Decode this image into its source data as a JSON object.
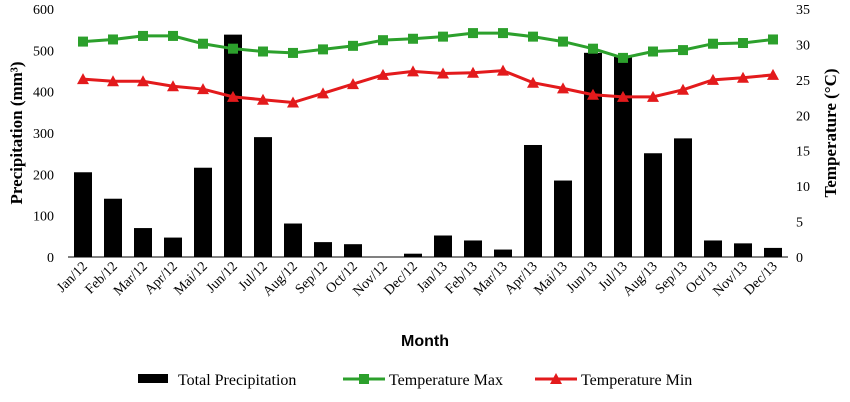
{
  "chart_data": {
    "type": "bar",
    "categories": [
      "Jan/12",
      "Feb/12",
      "Mar/12",
      "Apr/12",
      "Mai/12",
      "Jun/12",
      "Jul/12",
      "Aug/12",
      "Sep/12",
      "Oct/12",
      "Nov/12",
      "Dec/12",
      "Jan/13",
      "Feb/13",
      "Mar/13",
      "Apr/13",
      "Mai/13",
      "Jun/13",
      "Jul/13",
      "Aug/13",
      "Sep/13",
      "Oct/13",
      "Nov/13",
      "Dec/13"
    ],
    "series": [
      {
        "name": "Total Precipitation",
        "kind": "bar",
        "axis": "left",
        "color": "#000000",
        "values": [
          205,
          141,
          70,
          47,
          216,
          538,
          290,
          81,
          36,
          31,
          0,
          8,
          52,
          40,
          18,
          271,
          185,
          494,
          484,
          251,
          287,
          40,
          33,
          22
        ]
      },
      {
        "name": "Temperature Max",
        "kind": "line",
        "axis": "right",
        "color": "#2ca02c",
        "marker": "square",
        "values": [
          30.4,
          30.7,
          31.2,
          31.2,
          30.1,
          29.4,
          29.0,
          28.8,
          29.3,
          29.8,
          30.6,
          30.8,
          31.1,
          31.6,
          31.6,
          31.1,
          30.4,
          29.4,
          28.1,
          29.0,
          29.2,
          30.1,
          30.2,
          30.7
        ]
      },
      {
        "name": "Temperature Min",
        "kind": "line",
        "axis": "right",
        "color": "#e31a1c",
        "marker": "triangle",
        "values": [
          25.1,
          24.8,
          24.8,
          24.1,
          23.7,
          22.6,
          22.2,
          21.8,
          23.1,
          24.4,
          25.7,
          26.2,
          25.9,
          26.0,
          26.3,
          24.6,
          23.8,
          22.9,
          22.6,
          22.6,
          23.6,
          25.0,
          25.3,
          25.7
        ]
      }
    ],
    "xlabel": "Month",
    "ylabel": "Precipitation (mm³)",
    "y2label": "Temperature (°C)",
    "ylim": [
      0,
      600
    ],
    "y2lim": [
      0,
      35
    ],
    "yticks": [
      "0",
      "100",
      "200",
      "300",
      "400",
      "500",
      "600"
    ],
    "y2ticks": [
      "0",
      "5",
      "10",
      "15",
      "20",
      "25",
      "30",
      "35"
    ],
    "grid": false,
    "legend": "bottom"
  }
}
